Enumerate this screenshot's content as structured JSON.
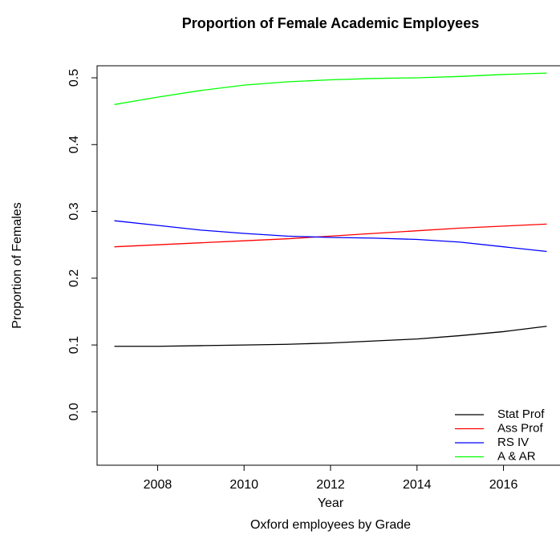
{
  "chart_data": {
    "type": "line",
    "title": "Proportion of Female Academic Employees",
    "xlabel": "Year",
    "ylabel": "Proportion of Females",
    "subtitle": "Oxford employees by Grade",
    "x": [
      2007,
      2008,
      2009,
      2010,
      2011,
      2012,
      2013,
      2014,
      2015,
      2016,
      2017
    ],
    "series": [
      {
        "name": "Stat Prof",
        "color": "#000000",
        "values": [
          0.098,
          0.098,
          0.099,
          0.1,
          0.101,
          0.103,
          0.106,
          0.109,
          0.114,
          0.12,
          0.128
        ]
      },
      {
        "name": "Ass Prof",
        "color": "#ff0000",
        "values": [
          0.247,
          0.25,
          0.253,
          0.256,
          0.259,
          0.263,
          0.267,
          0.271,
          0.275,
          0.278,
          0.281
        ]
      },
      {
        "name": "RS IV",
        "color": "#0000ff",
        "values": [
          0.286,
          0.279,
          0.272,
          0.267,
          0.263,
          0.261,
          0.26,
          0.258,
          0.254,
          0.247,
          0.24
        ]
      },
      {
        "name": "A & AR",
        "color": "#00ff00",
        "values": [
          0.46,
          0.471,
          0.481,
          0.489,
          0.494,
          0.497,
          0.499,
          0.5,
          0.502,
          0.505,
          0.507
        ]
      }
    ],
    "xlim": [
      2006.6,
      2017.4
    ],
    "xticks": [
      2008,
      2010,
      2012,
      2014,
      2016
    ],
    "ylim": [
      -0.08,
      0.518
    ],
    "yticks": [
      {
        "value": 0,
        "label": "0.0"
      },
      0.1,
      0.2,
      0.3,
      0.4,
      0.5
    ],
    "legend": "bottom-right",
    "grid": false
  }
}
